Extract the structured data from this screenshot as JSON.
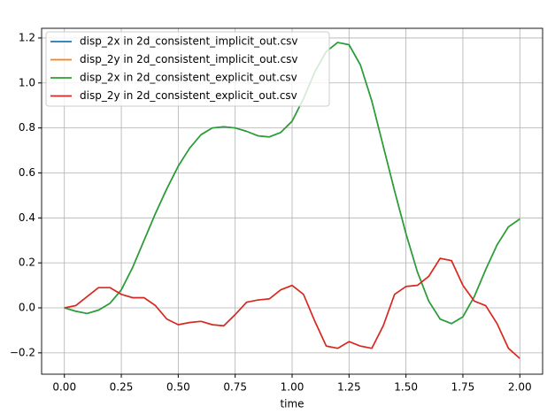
{
  "chart_data": {
    "type": "line",
    "x_label": "time",
    "x": [
      0,
      0.05,
      0.1,
      0.15,
      0.2,
      0.25,
      0.3,
      0.35,
      0.4,
      0.45,
      0.5,
      0.55,
      0.6,
      0.65,
      0.7,
      0.75,
      0.8,
      0.85,
      0.9,
      0.95,
      1.0,
      1.05,
      1.1,
      1.15,
      1.2,
      1.25,
      1.3,
      1.35,
      1.4,
      1.45,
      1.5,
      1.55,
      1.6,
      1.65,
      1.7,
      1.75,
      1.8,
      1.85,
      1.9,
      1.95,
      2.0
    ],
    "series": [
      {
        "name": "disp_2x in 2d_consistent_implicit_out.csv",
        "color": "#1f77b4",
        "values": [
          0,
          -0.015,
          -0.025,
          -0.01,
          0.02,
          0.08,
          0.18,
          0.3,
          0.42,
          0.53,
          0.63,
          0.71,
          0.77,
          0.8,
          0.805,
          0.8,
          0.785,
          0.765,
          0.76,
          0.78,
          0.83,
          0.93,
          1.05,
          1.14,
          1.18,
          1.17,
          1.08,
          0.92,
          0.72,
          0.52,
          0.33,
          0.16,
          0.03,
          -0.05,
          -0.07,
          -0.04,
          0.05,
          0.17,
          0.28,
          0.36,
          0.395
        ]
      },
      {
        "name": "disp_2y in 2d_consistent_implicit_out.csv",
        "color": "#ff7f0e",
        "values": [
          0,
          0.01,
          0.05,
          0.09,
          0.09,
          0.06,
          0.045,
          0.045,
          0.01,
          -0.05,
          -0.075,
          -0.065,
          -0.06,
          -0.075,
          -0.08,
          -0.03,
          0.025,
          0.035,
          0.04,
          0.08,
          0.1,
          0.06,
          -0.06,
          -0.17,
          -0.18,
          -0.15,
          -0.17,
          -0.18,
          -0.08,
          0.06,
          0.095,
          0.1,
          0.14,
          0.22,
          0.21,
          0.1,
          0.03,
          0.01,
          -0.07,
          -0.18,
          -0.225
        ]
      },
      {
        "name": "disp_2x in 2d_consistent_explicit_out.csv",
        "color": "#2ca02c",
        "values": [
          0,
          -0.015,
          -0.025,
          -0.01,
          0.02,
          0.08,
          0.18,
          0.3,
          0.42,
          0.53,
          0.63,
          0.71,
          0.77,
          0.8,
          0.805,
          0.8,
          0.785,
          0.765,
          0.76,
          0.78,
          0.83,
          0.93,
          1.05,
          1.14,
          1.18,
          1.17,
          1.08,
          0.92,
          0.72,
          0.52,
          0.33,
          0.16,
          0.03,
          -0.05,
          -0.07,
          -0.04,
          0.05,
          0.17,
          0.28,
          0.36,
          0.395
        ]
      },
      {
        "name": "disp_2y in 2d_consistent_explicit_out.csv",
        "color": "#d62728",
        "values": [
          0,
          0.01,
          0.05,
          0.09,
          0.09,
          0.06,
          0.045,
          0.045,
          0.01,
          -0.05,
          -0.075,
          -0.065,
          -0.06,
          -0.075,
          -0.08,
          -0.03,
          0.025,
          0.035,
          0.04,
          0.08,
          0.1,
          0.06,
          -0.06,
          -0.17,
          -0.18,
          -0.15,
          -0.17,
          -0.18,
          -0.08,
          0.06,
          0.095,
          0.1,
          0.14,
          0.22,
          0.21,
          0.1,
          0.03,
          0.01,
          -0.07,
          -0.18,
          -0.225
        ]
      }
    ],
    "xlim": [
      -0.1,
      2.1
    ],
    "ylim": [
      -0.295,
      1.243
    ],
    "xticks": [
      {
        "value": 0,
        "label": "0.00"
      },
      {
        "value": 0.25,
        "label": "0.25"
      },
      {
        "value": 0.5,
        "label": "0.50"
      },
      {
        "value": 0.75,
        "label": "0.75"
      },
      {
        "value": 1.0,
        "label": "1.00"
      },
      {
        "value": 1.25,
        "label": "1.25"
      },
      {
        "value": 1.5,
        "label": "1.50"
      },
      {
        "value": 1.75,
        "label": "1.75"
      },
      {
        "value": 2.0,
        "label": "2.00"
      }
    ],
    "yticks": [
      {
        "value": -0.2,
        "label": "−0.2"
      },
      {
        "value": 0,
        "label": "0.0"
      },
      {
        "value": 0.2,
        "label": "0.2"
      },
      {
        "value": 0.4,
        "label": "0.4"
      },
      {
        "value": 0.6,
        "label": "0.6"
      },
      {
        "value": 0.8,
        "label": "0.8"
      },
      {
        "value": 1.0,
        "label": "1.0"
      },
      {
        "value": 1.2,
        "label": "1.2"
      }
    ],
    "grid": true,
    "legend": "upper left"
  }
}
